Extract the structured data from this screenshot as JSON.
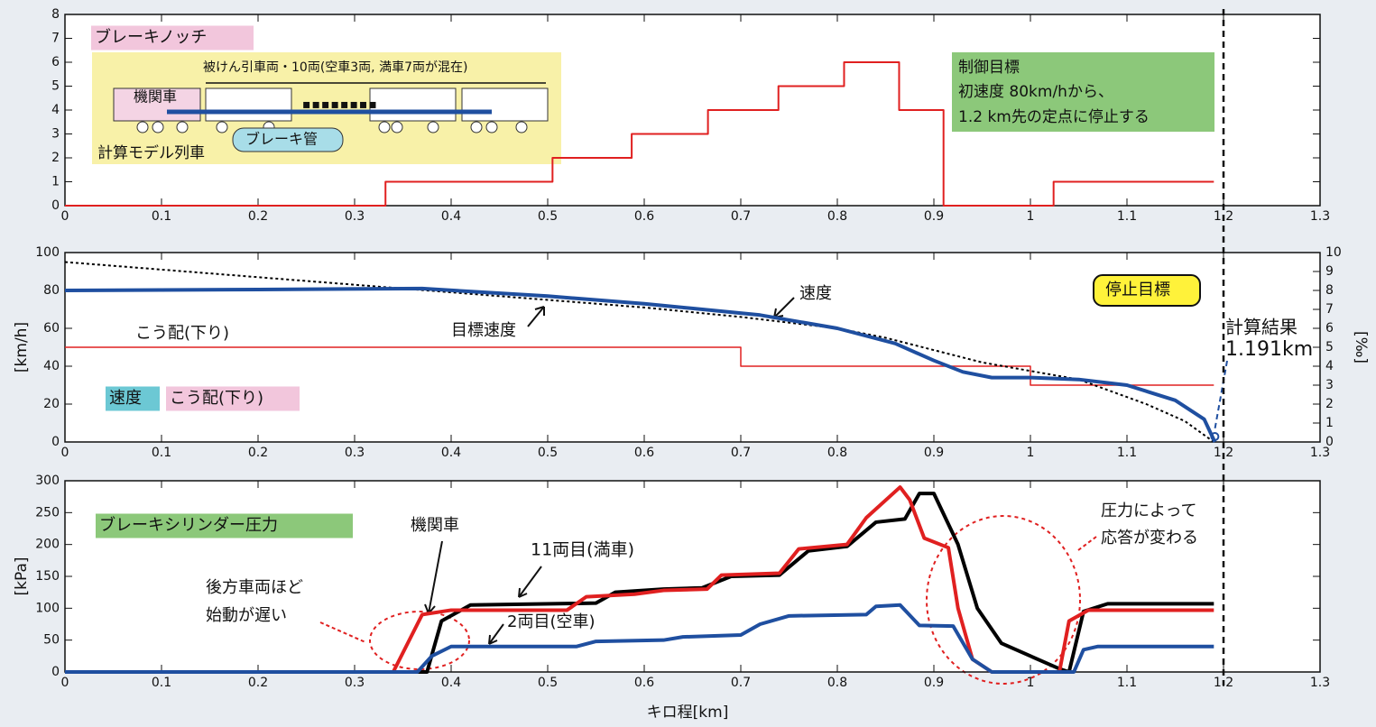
{
  "chart_data": [
    {
      "type": "line",
      "xlim": [
        0,
        1.3
      ],
      "xticks": [
        0,
        0.1,
        0.2,
        0.3,
        0.4,
        0.5,
        0.6,
        0.7,
        0.8,
        0.9,
        1,
        1.1,
        1.2,
        1.3
      ],
      "ylim": [
        0,
        8
      ],
      "yticks": [
        0,
        1,
        2,
        3,
        4,
        5,
        6,
        7,
        8
      ],
      "series": [
        {
          "color": "#e02020",
          "x": [
            0,
            0.332,
            0.332,
            0.505,
            0.505,
            0.587,
            0.587,
            0.666,
            0.666,
            0.739,
            0.739,
            0.807,
            0.807,
            0.864,
            0.864,
            0.91,
            0.91,
            1.024,
            1.024,
            1.19
          ],
          "values": [
            0,
            0,
            1,
            1,
            2,
            2,
            3,
            3,
            4,
            4,
            5,
            5,
            6,
            6,
            4,
            4,
            0,
            0,
            1,
            1
          ]
        }
      ],
      "annotations": {
        "title": "ブレーキノッチ",
        "cars": "被けん引車両・10両(空車3両, 満車7両が混在)",
        "loco": "機関車",
        "pipe": "ブレーキ管",
        "model": "計算モデル列車",
        "goal": [
          "制御目標",
          "初速度 80km/hから、",
          "1.2 km先の定点に停止する"
        ]
      }
    },
    {
      "type": "line",
      "xlim": [
        0,
        1.3
      ],
      "xticks": [
        0,
        0.1,
        0.2,
        0.3,
        0.4,
        0.5,
        0.6,
        0.7,
        0.8,
        0.9,
        1,
        1.1,
        1.2,
        1.3
      ],
      "ylim": [
        0,
        100
      ],
      "yticks": [
        0,
        20,
        40,
        60,
        80,
        100
      ],
      "y2lim": [
        0,
        10
      ],
      "y2ticks": [
        0,
        1,
        2,
        3,
        4,
        5,
        6,
        7,
        8,
        9,
        10
      ],
      "ylabel": "[km/h]",
      "y2label": "[‰]",
      "series": [
        {
          "name": "こう配(下り)",
          "color": "#e02020",
          "width": 1.5,
          "axis": "y2",
          "x": [
            0,
            0.7,
            0.7,
            1.0,
            1.0,
            1.19
          ],
          "values": [
            5,
            5,
            4,
            4,
            3,
            3
          ]
        },
        {
          "name": "目標速度",
          "color": "#000000",
          "width": 2,
          "dash": "3 3",
          "x": [
            0,
            0.1,
            0.2,
            0.35,
            0.5,
            0.6,
            0.7,
            0.8,
            0.85,
            0.95,
            1.05,
            1.12,
            1.16,
            1.19
          ],
          "values": [
            95,
            91,
            87,
            81,
            75,
            71,
            66,
            60,
            55,
            42,
            33,
            20,
            11,
            0
          ]
        },
        {
          "name": "速度",
          "color": "#1f4fa0",
          "width": 4,
          "x": [
            0,
            0.2,
            0.37,
            0.5,
            0.6,
            0.72,
            0.8,
            0.86,
            0.9,
            0.93,
            0.96,
            1.0,
            1.05,
            1.1,
            1.15,
            1.18,
            1.191
          ],
          "values": [
            80,
            80.5,
            81,
            77,
            73,
            67,
            60,
            52,
            43,
            37,
            34,
            34,
            33,
            30,
            22,
            12,
            0
          ]
        }
      ],
      "annotations": {
        "stop": "停止目標",
        "result_title": "計算結果"
      },
      "result": {
        "value": 1.191,
        "label": "1.191km"
      }
    },
    {
      "type": "line",
      "xlim": [
        0,
        1.3
      ],
      "xticks": [
        0,
        0.1,
        0.2,
        0.3,
        0.4,
        0.5,
        0.6,
        0.7,
        0.8,
        0.9,
        1,
        1.1,
        1.2,
        1.3
      ],
      "ylim": [
        0,
        300
      ],
      "yticks": [
        0,
        50,
        100,
        150,
        200,
        250,
        300
      ],
      "ylabel": "[kPa]",
      "xlabel": "キロ程[km]",
      "series": [
        {
          "name": "11両目(満車)",
          "color": "#000000",
          "width": 4,
          "x": [
            0,
            0.375,
            0.39,
            0.42,
            0.55,
            0.57,
            0.62,
            0.66,
            0.69,
            0.74,
            0.77,
            0.81,
            0.84,
            0.87,
            0.885,
            0.9,
            0.925,
            0.945,
            0.97,
            1.0,
            1.03,
            1.04,
            1.055,
            1.08,
            1.19
          ],
          "values": [
            0,
            0,
            80,
            105,
            108,
            125,
            130,
            132,
            150,
            152,
            190,
            197,
            235,
            240,
            280,
            280,
            200,
            100,
            45,
            25,
            5,
            0,
            95,
            107,
            107
          ]
        },
        {
          "name": "機関車",
          "color": "#e02020",
          "width": 4,
          "x": [
            0,
            0.34,
            0.37,
            0.4,
            0.52,
            0.54,
            0.59,
            0.62,
            0.665,
            0.68,
            0.74,
            0.76,
            0.81,
            0.83,
            0.865,
            0.875,
            0.89,
            0.915,
            0.925,
            0.94,
            0.96,
            1.03,
            1.04,
            1.06,
            1.19
          ],
          "values": [
            0,
            0,
            90,
            97,
            97,
            118,
            122,
            128,
            130,
            152,
            155,
            193,
            200,
            242,
            290,
            270,
            210,
            195,
            100,
            20,
            0,
            0,
            80,
            97,
            97
          ]
        },
        {
          "name": "2両目(空車)",
          "color": "#1f4fa0",
          "width": 4,
          "x": [
            0,
            0.365,
            0.38,
            0.4,
            0.53,
            0.55,
            0.62,
            0.64,
            0.7,
            0.72,
            0.75,
            0.83,
            0.84,
            0.865,
            0.885,
            0.92,
            0.94,
            0.96,
            1.045,
            1.055,
            1.07,
            1.19
          ],
          "values": [
            0,
            0,
            25,
            40,
            40,
            48,
            50,
            55,
            58,
            75,
            88,
            90,
            103,
            105,
            73,
            72,
            20,
            0,
            0,
            35,
            40,
            40
          ]
        }
      ],
      "annotations": {
        "title": "ブレーキシリンダー圧力",
        "late": [
          "後方車両ほど",
          "始動が遅い"
        ],
        "resp": [
          "圧力によって",
          "応答が変わる"
        ]
      }
    }
  ],
  "target_x": 1.2
}
